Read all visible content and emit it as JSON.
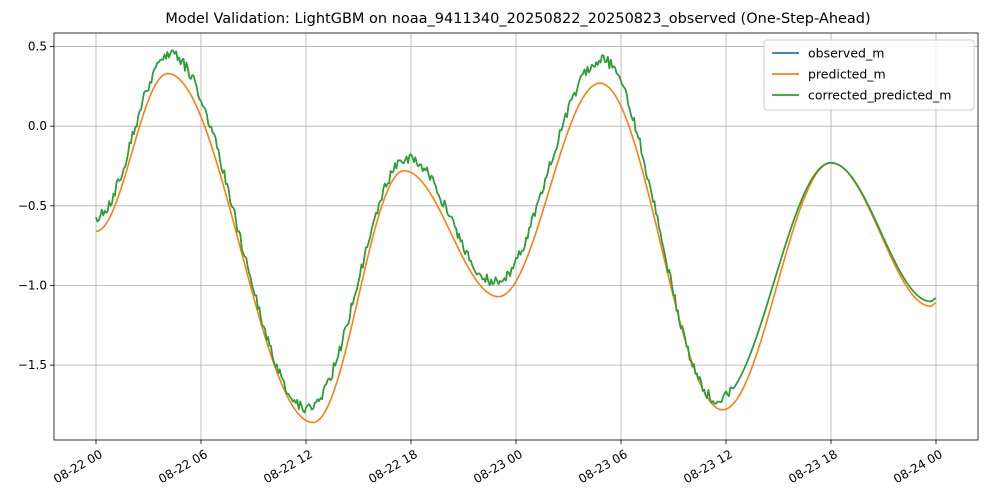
{
  "chart_data": {
    "type": "line",
    "title": "Model Validation: LightGBM on noaa_9411340_20250822_20250823_observed (One-Step-Ahead)",
    "xlabel": "",
    "ylabel": "",
    "x_range_hours": [
      0,
      48
    ],
    "xlim_hours": [
      -2.4,
      50.4
    ],
    "ylim": [
      -1.97,
      0.585
    ],
    "grid": true,
    "legend_position": "top-right",
    "x_ticks": [
      {
        "hour": 0,
        "label": "08-22 00"
      },
      {
        "hour": 6,
        "label": "08-22 06"
      },
      {
        "hour": 12,
        "label": "08-22 12"
      },
      {
        "hour": 18,
        "label": "08-22 18"
      },
      {
        "hour": 24,
        "label": "08-23 00"
      },
      {
        "hour": 30,
        "label": "08-23 06"
      },
      {
        "hour": 36,
        "label": "08-23 12"
      },
      {
        "hour": 42,
        "label": "08-23 18"
      },
      {
        "hour": 48,
        "label": "08-24 00"
      }
    ],
    "y_ticks": [
      {
        "value": 0.5,
        "label": "0.5"
      },
      {
        "value": 0.0,
        "label": "0.0"
      },
      {
        "value": -0.5,
        "label": "−0.5"
      },
      {
        "value": -1.0,
        "label": "−1.0"
      },
      {
        "value": -1.5,
        "label": "−1.5"
      }
    ],
    "predicted_keypoints": [
      [
        0,
        -0.66
      ],
      [
        4.1,
        0.33
      ],
      [
        12.4,
        -1.86
      ],
      [
        17.6,
        -0.28
      ],
      [
        23.0,
        -1.07
      ],
      [
        28.8,
        0.27
      ],
      [
        35.8,
        -1.78
      ],
      [
        42.0,
        -0.23
      ],
      [
        47.7,
        -1.13
      ],
      [
        48,
        -1.11
      ]
    ],
    "observed_keypoints": [
      [
        0,
        -0.57
      ],
      [
        4.2,
        0.45
      ],
      [
        12.1,
        -1.77
      ],
      [
        17.8,
        -0.2
      ],
      [
        22.8,
        -0.98
      ],
      [
        28.9,
        0.42
      ],
      [
        35.5,
        -1.72
      ],
      [
        42.0,
        -0.23
      ],
      [
        47.7,
        -1.1
      ],
      [
        48,
        -1.08
      ]
    ],
    "noise_until_hour": 36.5,
    "noise_amplitude": 0.035,
    "series": [
      {
        "name": "observed_m",
        "color": "#1f77b4",
        "source": "observed"
      },
      {
        "name": "predicted_m",
        "color": "#ff7f0e",
        "source": "predicted"
      },
      {
        "name": "corrected_predicted_m",
        "color": "#2ca02c",
        "source": "observed"
      }
    ]
  }
}
